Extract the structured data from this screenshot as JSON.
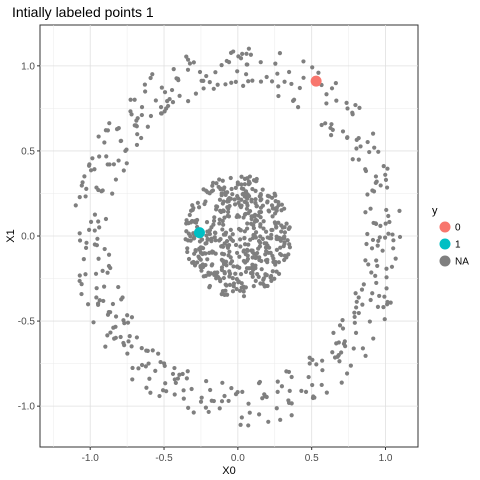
{
  "chart_data": {
    "type": "scatter",
    "title": "Intially labeled points  1",
    "xlabel": "X0",
    "ylabel": "X1",
    "xlim": [
      -1.34,
      1.22
    ],
    "ylim": [
      -1.24,
      1.24
    ],
    "x_ticks": [
      -1.0,
      -0.5,
      0.0,
      0.5,
      1.0
    ],
    "x_tick_labels": [
      "-1.0",
      "-0.5",
      "0.0",
      "0.5",
      "1.0"
    ],
    "y_ticks": [
      -1.0,
      -0.5,
      0.0,
      0.5,
      1.0
    ],
    "y_tick_labels": [
      "-1.0",
      "-0.5",
      "0.0",
      "0.5",
      "1.0"
    ],
    "grid": true,
    "legend": {
      "title": "y",
      "placement": "right",
      "entries": [
        {
          "label": "0",
          "color": "#F8766D"
        },
        {
          "label": "1",
          "color": "#00BFC4"
        },
        {
          "label": "NA",
          "color": "#7F7F7F"
        }
      ]
    },
    "series": [
      {
        "name": "0",
        "color": "#F8766D",
        "points": [
          {
            "x": 0.53,
            "y": 0.91
          }
        ]
      },
      {
        "name": "1",
        "color": "#00BFC4",
        "points": [
          {
            "x": -0.26,
            "y": 0.02
          }
        ]
      },
      {
        "name": "NA",
        "color": "#7F7F7F",
        "description_points": "unlabeled points forming an outer ring of radius about 1.0 (band 0.85-1.12) and an inner disc of radius about 0.35 centred at the origin",
        "ring": {
          "count": 420,
          "radius_min": 0.86,
          "radius_max": 1.12
        },
        "disc": {
          "count": 480,
          "radius_max": 0.36
        }
      }
    ]
  }
}
